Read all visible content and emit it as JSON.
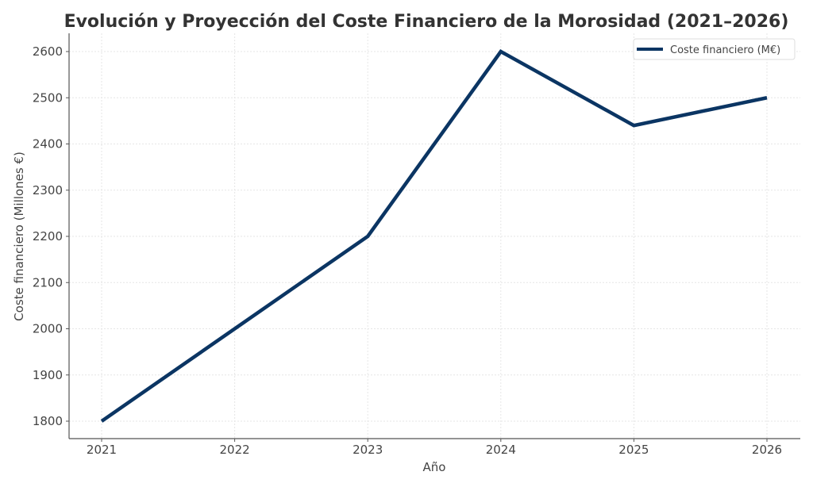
{
  "chart_data": {
    "type": "line",
    "title": "Evolución y Proyección del Coste Financiero de la Morosidad (2021–2026)",
    "xlabel": "Año",
    "ylabel": "Coste financiero (Millones €)",
    "categories": [
      "2021",
      "2022",
      "2023",
      "2024",
      "2025",
      "2026"
    ],
    "series": [
      {
        "name": "Coste financiero (M€)",
        "color": "#0b3563",
        "values": [
          1800,
          2000,
          2200,
          2600,
          2440,
          2500
        ]
      }
    ],
    "yticks": [
      1800,
      1900,
      2000,
      2100,
      2200,
      2300,
      2400,
      2500,
      2600
    ],
    "ylim": [
      1762,
      2640
    ],
    "grid": true,
    "legend_position": "upper right"
  }
}
